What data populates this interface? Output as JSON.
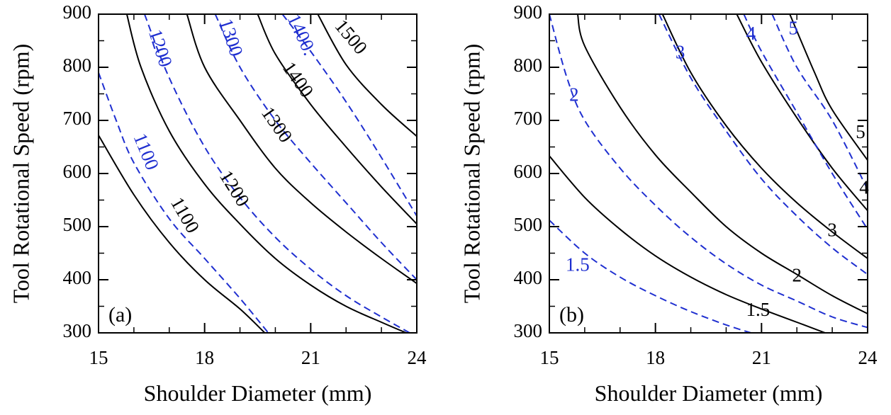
{
  "chart_data": [
    {
      "type": "line",
      "panel_label": "(a)",
      "xlabel": "Shoulder Diameter (mm)",
      "ylabel": "Tool Rotational Speed (rpm)",
      "xlim": [
        15,
        24
      ],
      "ylim": [
        300,
        900
      ],
      "xticks": [
        15,
        18,
        21,
        24
      ],
      "yticks": [
        300,
        400,
        500,
        600,
        700,
        800,
        900
      ],
      "grid": false,
      "colors": {
        "solid": "#000000",
        "dashed": "#1f2fd0"
      },
      "series": [
        {
          "name": "1100",
          "style": "solid",
          "points": [
            [
              15,
              672
            ],
            [
              16,
              560
            ],
            [
              17,
              470
            ],
            [
              18,
              400
            ],
            [
              19,
              345
            ],
            [
              19.7,
              300
            ]
          ]
        },
        {
          "name": "1200",
          "style": "solid",
          "points": [
            [
              15.8,
              900
            ],
            [
              16.2,
              800
            ],
            [
              17,
              680
            ],
            [
              18,
              580
            ],
            [
              19,
              505
            ],
            [
              20,
              440
            ],
            [
              21,
              390
            ],
            [
              22,
              350
            ],
            [
              23,
              320
            ],
            [
              23.7,
              300
            ]
          ]
        },
        {
          "name": "1300",
          "style": "solid",
          "points": [
            [
              17.5,
              900
            ],
            [
              18,
              800
            ],
            [
              19,
              700
            ],
            [
              20,
              610
            ],
            [
              21,
              545
            ],
            [
              22,
              490
            ],
            [
              23,
              440
            ],
            [
              24,
              393
            ]
          ]
        },
        {
          "name": "1400",
          "style": "solid",
          "points": [
            [
              19.5,
              900
            ],
            [
              20,
              825
            ],
            [
              21,
              730
            ],
            [
              22,
              650
            ],
            [
              23,
              575
            ],
            [
              24,
              505
            ]
          ]
        },
        {
          "name": "1500",
          "style": "solid",
          "points": [
            [
              21.2,
              900
            ],
            [
              22,
              805
            ],
            [
              23,
              730
            ],
            [
              24,
              670
            ]
          ]
        },
        {
          "name": "1100",
          "style": "dashed",
          "points": [
            [
              15,
              790
            ],
            [
              15.5,
              700
            ],
            [
              16,
              620
            ],
            [
              17,
              515
            ],
            [
              18,
              440
            ],
            [
              19,
              365
            ],
            [
              19.8,
              300
            ]
          ]
        },
        {
          "name": "1200",
          "style": "dashed",
          "points": [
            [
              16.3,
              900
            ],
            [
              17,
              780
            ],
            [
              18,
              650
            ],
            [
              19,
              555
            ],
            [
              20,
              480
            ],
            [
              21,
              420
            ],
            [
              22,
              370
            ],
            [
              23,
              330
            ],
            [
              23.8,
              300
            ]
          ]
        },
        {
          "name": "1300",
          "style": "dashed",
          "points": [
            [
              18.3,
              900
            ],
            [
              19,
              800
            ],
            [
              20,
              700
            ],
            [
              21,
              620
            ],
            [
              22,
              545
            ],
            [
              23,
              470
            ],
            [
              24,
              400
            ]
          ]
        },
        {
          "name": "1400",
          "style": "dashed",
          "points": [
            [
              20.2,
              900
            ],
            [
              21,
              830
            ],
            [
              22,
              735
            ],
            [
              23,
              630
            ],
            [
              24,
              520
            ]
          ]
        }
      ],
      "contour_labels": [
        {
          "text": "1100",
          "color": "#000000",
          "x": 17.4,
          "y": 520,
          "angle": 60
        },
        {
          "text": "1200",
          "color": "#000000",
          "x": 18.8,
          "y": 570,
          "angle": 58
        },
        {
          "text": "1300",
          "color": "#000000",
          "x": 20.0,
          "y": 690,
          "angle": 55
        },
        {
          "text": "1400",
          "color": "#000000",
          "x": 20.6,
          "y": 775,
          "angle": 55
        },
        {
          "text": "1500",
          "color": "#000000",
          "x": 22.1,
          "y": 855,
          "angle": 50
        },
        {
          "text": "1100",
          "color": "#1f2fd0",
          "x": 16.3,
          "y": 640,
          "angle": 68
        },
        {
          "text": "1200",
          "color": "#1f2fd0",
          "x": 16.7,
          "y": 835,
          "angle": 72
        },
        {
          "text": "1300",
          "color": "#1f2fd0",
          "x": 18.7,
          "y": 855,
          "angle": 72
        },
        {
          "text": "1400.",
          "color": "#1f2fd0",
          "x": 20.7,
          "y": 860,
          "angle": 65
        }
      ]
    },
    {
      "type": "line",
      "panel_label": "(b)",
      "xlabel": "Shoulder Diameter (mm)",
      "ylabel": "Tool Rotational Speed (rpm)",
      "xlim": [
        15,
        24
      ],
      "ylim": [
        300,
        900
      ],
      "xticks": [
        15,
        18,
        21,
        24
      ],
      "yticks": [
        300,
        400,
        500,
        600,
        700,
        800,
        900
      ],
      "grid": false,
      "colors": {
        "solid": "#000000",
        "dashed": "#1f2fd0"
      },
      "series": [
        {
          "name": "1.5",
          "style": "solid",
          "points": [
            [
              15,
              633
            ],
            [
              16,
              555
            ],
            [
              17,
              495
            ],
            [
              18,
              445
            ],
            [
              19,
              405
            ],
            [
              20,
              372
            ],
            [
              21,
              345
            ],
            [
              22,
              320
            ],
            [
              22.8,
              300
            ]
          ]
        },
        {
          "name": "2",
          "style": "solid",
          "points": [
            [
              15.8,
              900
            ],
            [
              16,
              840
            ],
            [
              17,
              725
            ],
            [
              18,
              635
            ],
            [
              19,
              565
            ],
            [
              20,
              500
            ],
            [
              21,
              450
            ],
            [
              22,
              410
            ],
            [
              23,
              370
            ],
            [
              24,
              336
            ]
          ]
        },
        {
          "name": "3",
          "style": "solid",
          "points": [
            [
              18.2,
              900
            ],
            [
              19,
              790
            ],
            [
              20,
              690
            ],
            [
              21,
              610
            ],
            [
              22,
              545
            ],
            [
              23,
              490
            ],
            [
              24,
              440
            ]
          ]
        },
        {
          "name": "4",
          "style": "solid",
          "points": [
            [
              20.3,
              900
            ],
            [
              21,
              810
            ],
            [
              22,
              705
            ],
            [
              23,
              610
            ],
            [
              24,
              530
            ]
          ]
        },
        {
          "name": "5",
          "style": "solid",
          "points": [
            [
              21.8,
              900
            ],
            [
              22.5,
              790
            ],
            [
              23,
              720
            ],
            [
              24,
              625
            ]
          ]
        },
        {
          "name": "1.5",
          "style": "dashed",
          "points": [
            [
              15,
              512
            ],
            [
              16,
              450
            ],
            [
              17,
              405
            ],
            [
              18,
              370
            ],
            [
              19,
              340
            ],
            [
              20,
              315
            ],
            [
              20.7,
              300
            ]
          ]
        },
        {
          "name": "2",
          "style": "dashed",
          "points": [
            [
              15,
              900
            ],
            [
              15.5,
              780
            ],
            [
              16,
              700
            ],
            [
              17,
              610
            ],
            [
              18,
              540
            ],
            [
              19,
              480
            ],
            [
              20,
              430
            ],
            [
              21,
              390
            ],
            [
              22,
              360
            ],
            [
              23,
              330
            ],
            [
              24,
              310
            ]
          ]
        },
        {
          "name": "3",
          "style": "dashed",
          "points": [
            [
              18.1,
              900
            ],
            [
              19,
              780
            ],
            [
              20,
              680
            ],
            [
              21,
              590
            ],
            [
              22,
              520
            ],
            [
              23,
              460
            ],
            [
              24,
              410
            ]
          ]
        },
        {
          "name": "4",
          "style": "dashed",
          "points": [
            [
              20.5,
              900
            ],
            [
              21,
              830
            ],
            [
              22,
              715
            ],
            [
              23,
              600
            ],
            [
              24,
              495
            ]
          ]
        },
        {
          "name": "5",
          "style": "dashed",
          "points": [
            [
              21.3,
              900
            ],
            [
              22,
              800
            ],
            [
              23,
              700
            ],
            [
              24,
              570
            ]
          ]
        }
      ],
      "contour_labels": [
        {
          "text": "1.5",
          "color": "#000000",
          "x": 20.9,
          "y": 340,
          "angle": 0
        },
        {
          "text": "2",
          "color": "#000000",
          "x": 22.0,
          "y": 405,
          "angle": 0
        },
        {
          "text": "3",
          "color": "#000000",
          "x": 23.0,
          "y": 490,
          "angle": 0
        },
        {
          "text": "4",
          "color": "#000000",
          "x": 23.9,
          "y": 570,
          "angle": 0
        },
        {
          "text": "5",
          "color": "#000000",
          "x": 23.8,
          "y": 675,
          "angle": 0
        },
        {
          "text": "1.5",
          "color": "#1f2fd0",
          "x": 15.8,
          "y": 425,
          "angle": 0
        },
        {
          "text": "2",
          "color": "#1f2fd0",
          "x": 15.7,
          "y": 745,
          "angle": 0
        },
        {
          "text": "3",
          "color": "#1f2fd0",
          "x": 18.7,
          "y": 825,
          "angle": 0
        },
        {
          "text": "4",
          "color": "#1f2fd0",
          "x": 20.7,
          "y": 860,
          "angle": 0
        },
        {
          "text": "5",
          "color": "#1f2fd0",
          "x": 21.9,
          "y": 870,
          "angle": 0
        }
      ]
    }
  ]
}
